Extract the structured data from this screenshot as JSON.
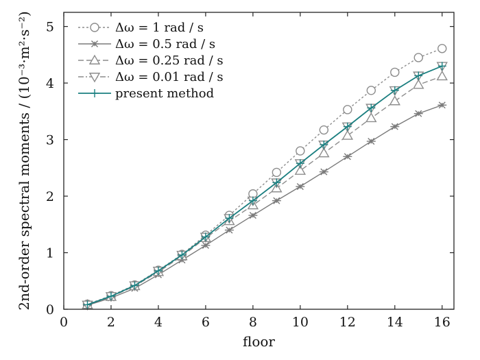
{
  "chart_data": {
    "type": "line",
    "title": "",
    "xlabel": "floor",
    "ylabel": "2nd-order spectral moments / (10⁻³·m²·s⁻²)",
    "xlim": [
      0,
      16.5
    ],
    "ylim": [
      0,
      5.25
    ],
    "xticks": [
      0,
      2,
      4,
      6,
      8,
      10,
      12,
      14,
      16
    ],
    "yticks": [
      0,
      1,
      2,
      3,
      4,
      5
    ],
    "grid": false,
    "legend_position": "top-left",
    "x": [
      1,
      2,
      3,
      4,
      5,
      6,
      7,
      8,
      9,
      10,
      11,
      12,
      13,
      14,
      15,
      16
    ],
    "series": [
      {
        "name": "Δω = 1 rad / s",
        "color": "#8c8c8c",
        "line": "dotted",
        "marker": "circle",
        "values": [
          0.09,
          0.24,
          0.43,
          0.69,
          0.97,
          1.31,
          1.66,
          2.04,
          2.42,
          2.8,
          3.17,
          3.53,
          3.87,
          4.19,
          4.45,
          4.61
        ]
      },
      {
        "name": "Δω = 0.5 rad / s",
        "color": "#7a7a7a",
        "line": "solid",
        "marker": "asterisk",
        "values": [
          0.07,
          0.2,
          0.37,
          0.61,
          0.87,
          1.13,
          1.4,
          1.66,
          1.92,
          2.17,
          2.43,
          2.7,
          2.97,
          3.23,
          3.46,
          3.61
        ]
      },
      {
        "name": "Δω = 0.25 rad / s",
        "color": "#8c8c8c",
        "line": "dashed",
        "marker": "triangle-up",
        "values": [
          0.08,
          0.22,
          0.41,
          0.66,
          0.94,
          1.26,
          1.56,
          1.84,
          2.14,
          2.45,
          2.76,
          3.07,
          3.38,
          3.68,
          3.97,
          4.12
        ]
      },
      {
        "name": "Δω = 0.01 rad / s",
        "color": "#8c8c8c",
        "line": "dashdot",
        "marker": "triangle-down",
        "values": [
          0.08,
          0.23,
          0.42,
          0.68,
          0.96,
          1.28,
          1.61,
          1.92,
          2.24,
          2.58,
          2.91,
          3.23,
          3.56,
          3.87,
          4.13,
          4.3
        ]
      },
      {
        "name": "present method",
        "color": "#1a7f80",
        "line": "solid",
        "marker": "plus",
        "values": [
          0.08,
          0.23,
          0.42,
          0.68,
          0.96,
          1.28,
          1.61,
          1.92,
          2.24,
          2.58,
          2.91,
          3.23,
          3.56,
          3.87,
          4.13,
          4.3
        ]
      }
    ]
  }
}
